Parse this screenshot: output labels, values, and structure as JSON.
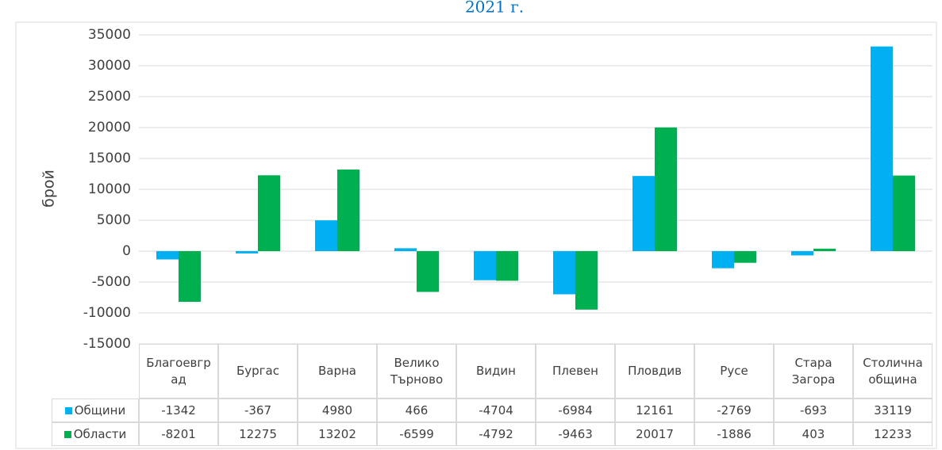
{
  "chart_data": {
    "type": "bar",
    "title": "2021 г.",
    "y_label": "брой",
    "categories": [
      "Благоевград",
      "Бургас",
      "Варна",
      "Велико Търново",
      "Видин",
      "Плевен",
      "Пловдив",
      "Русе",
      "Стара Загора",
      "Столична община"
    ],
    "series": [
      {
        "name": "Общини",
        "color": "#00b0f0",
        "values": [
          -1342,
          -367,
          4980,
          466,
          -4704,
          -6984,
          12161,
          -2769,
          -693,
          33119
        ]
      },
      {
        "name": "Области",
        "color": "#00b050",
        "values": [
          -8201,
          12275,
          13202,
          -6599,
          -4792,
          -9463,
          20017,
          -1886,
          403,
          12233
        ]
      }
    ],
    "ylim": [
      -15000,
      35000
    ],
    "yticks": [
      -15000,
      -10000,
      -5000,
      0,
      5000,
      10000,
      15000,
      20000,
      25000,
      30000,
      35000
    ],
    "grid": true,
    "data_table": true
  }
}
